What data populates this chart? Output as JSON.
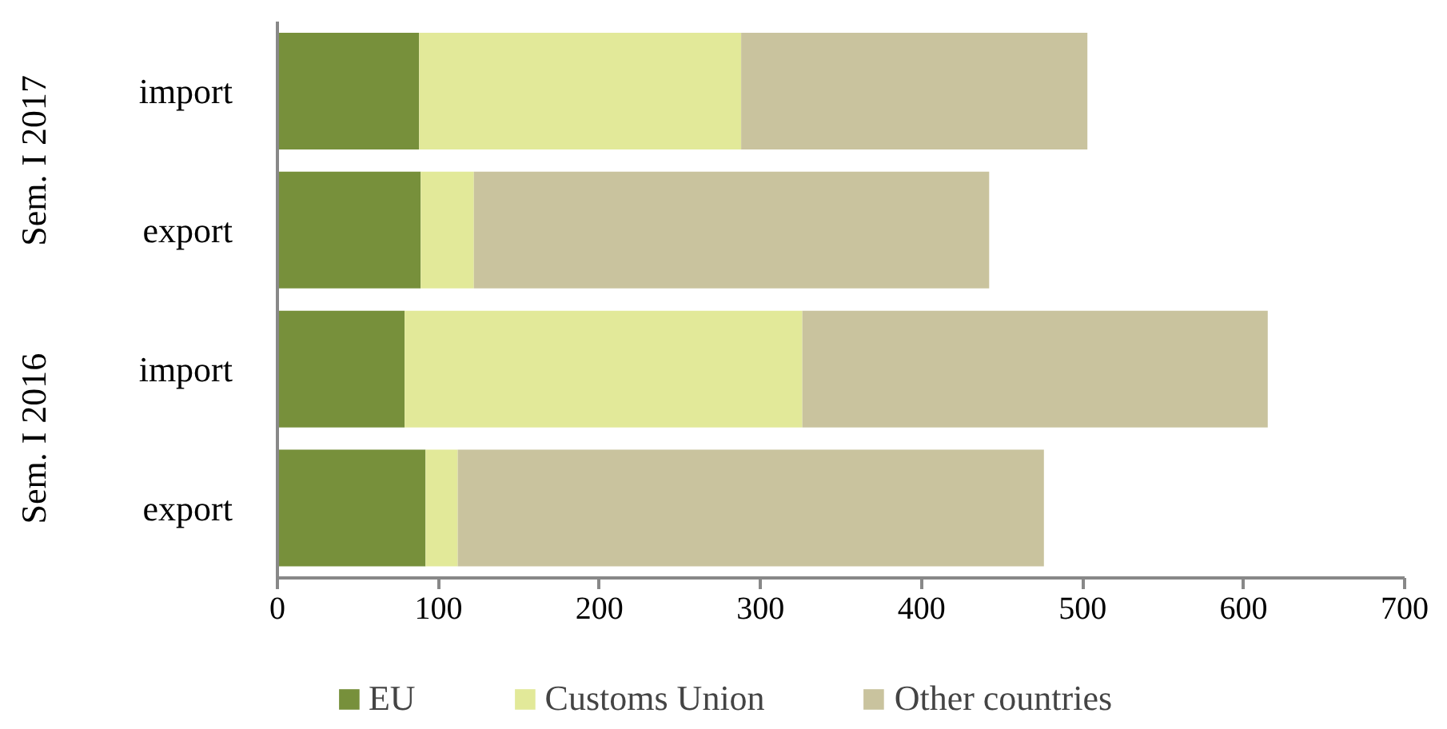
{
  "chart_data": {
    "type": "bar",
    "orientation": "horizontal",
    "stacked": true,
    "categories": [
      "import",
      "export",
      "import",
      "export"
    ],
    "annotations": [
      "Sem. I 2017",
      "Sem. I 2016"
    ],
    "series": [
      {
        "name": "EU",
        "color": "#77903b",
        "values": [
          88,
          89,
          79,
          92
        ]
      },
      {
        "name": "Customs Union",
        "color": "#e2e999",
        "values": [
          200,
          33,
          247,
          20
        ]
      },
      {
        "name": "Other countries",
        "color": "#c9c39e",
        "values": [
          215,
          320,
          289,
          364
        ]
      }
    ],
    "xlim": [
      0,
      700
    ],
    "xticks": [
      0,
      100,
      200,
      300,
      400,
      500,
      600,
      700
    ],
    "grid": false,
    "legend": "bottom"
  }
}
